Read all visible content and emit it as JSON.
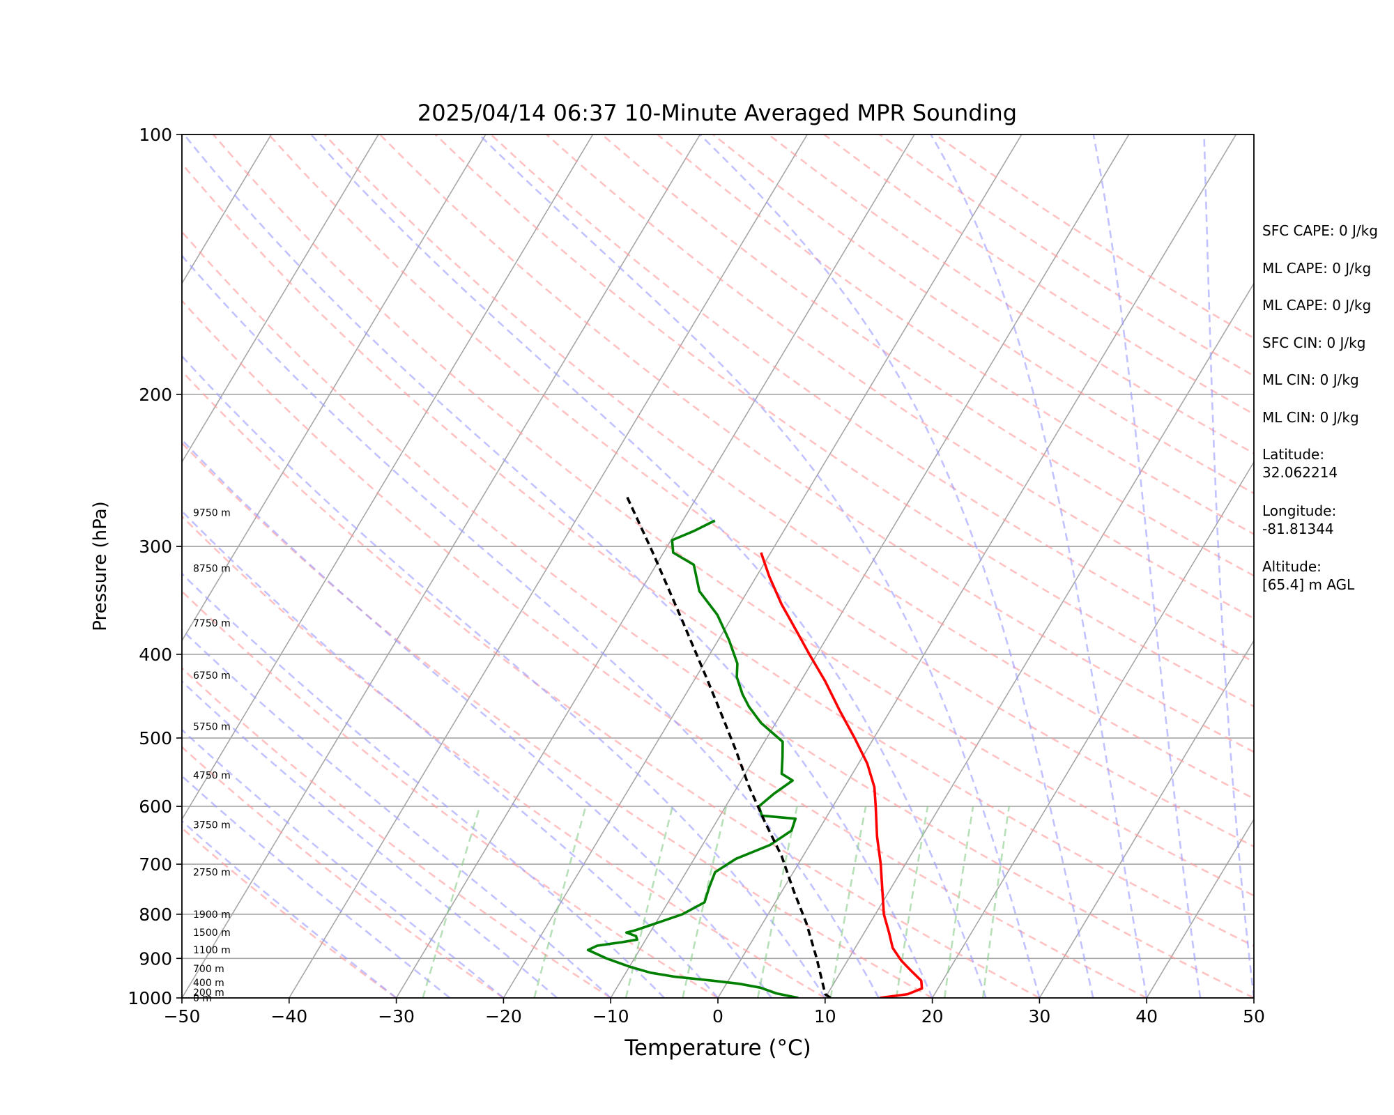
{
  "chart_data": {
    "type": "line",
    "title": "2025/04/14 06:37 10-Minute Averaged MPR Sounding",
    "xlabel": "Temperature (°C)",
    "ylabel": "Pressure (hPa)",
    "xlim": [
      -50,
      50
    ],
    "ylim": [
      1000,
      100
    ],
    "y_scale": "log",
    "skew": "skew-T",
    "grid": true,
    "x_ticks": [
      "−50",
      "−40",
      "−30",
      "−20",
      "−10",
      "0",
      "10",
      "20",
      "30",
      "40",
      "50"
    ],
    "y_ticks": [
      "100",
      "200",
      "300",
      "400",
      "500",
      "600",
      "700",
      "800",
      "900",
      "1000"
    ],
    "height_labels": [
      {
        "p": 1000,
        "label": "0 m"
      },
      {
        "p": 985,
        "label": "200 m"
      },
      {
        "p": 960,
        "label": "400 m"
      },
      {
        "p": 925,
        "label": "700 m"
      },
      {
        "p": 880,
        "label": "1100 m"
      },
      {
        "p": 840,
        "label": "1500 m"
      },
      {
        "p": 800,
        "label": "1900 m"
      },
      {
        "p": 715,
        "label": "2750 m"
      },
      {
        "p": 630,
        "label": "3750 m"
      },
      {
        "p": 552,
        "label": "4750 m"
      },
      {
        "p": 485,
        "label": "5750 m"
      },
      {
        "p": 423,
        "label": "6750 m"
      },
      {
        "p": 368,
        "label": "7750 m"
      },
      {
        "p": 318,
        "label": "8750 m"
      },
      {
        "p": 274,
        "label": "9750 m"
      }
    ],
    "series": [
      {
        "color": "#ff0000",
        "x": [
          15.1,
          17.5,
          18.5,
          18.0,
          16.5,
          15.0,
          13.5,
          12.3,
          10.8,
          9.3,
          7.7,
          5.8,
          4.0,
          2.8,
          0.8,
          -1.8,
          -4.7,
          -7.7,
          -10.7,
          -13.3,
          -16.1,
          -18.8,
          -20.9
        ],
        "y": [
          1000,
          990,
          975,
          955,
          930,
          905,
          875,
          840,
          800,
          750,
          700,
          650,
          600,
          570,
          535,
          500,
          465,
          430,
          400,
          375,
          350,
          325,
          305
        ]
      },
      {
        "color": "#008000",
        "x": [
          7.5,
          5.2,
          3.4,
          1.2,
          -1.5,
          -5.2,
          -7.7,
          -10.0,
          -12.6,
          -14.8,
          -14.2,
          -12.1,
          -10.8,
          -11.1,
          -12.2,
          -11.5,
          -9.5,
          -8.0,
          -6.6,
          -7.0,
          -7.3,
          -6.1,
          -3.7,
          -2.5,
          -2.8,
          -6.1,
          -6.9,
          -6.2,
          -5.2,
          -6.6,
          -7.5,
          -8.3,
          -11.4,
          -13.4,
          -14.7,
          -16.2,
          -16.9,
          -19.0,
          -21.5,
          -24.5,
          -26.5,
          -29.1,
          -29.9,
          -28.4,
          -27.0
        ],
        "y": [
          1000,
          988,
          973,
          963,
          955,
          945,
          935,
          920,
          900,
          880,
          870,
          862,
          856,
          848,
          840,
          835,
          815,
          800,
          775,
          745,
          715,
          690,
          665,
          640,
          620,
          615,
          600,
          580,
          560,
          550,
          525,
          505,
          480,
          460,
          445,
          425,
          410,
          385,
          360,
          338,
          315,
          305,
          295,
          288,
          280
        ]
      },
      {
        "color": "#000000",
        "x": [
          10.5,
          9.8,
          7.0,
          4.1,
          1.0,
          -2.0,
          -5.5,
          -9.0,
          -12.3,
          -15.5,
          -18.8,
          -24.8,
          -31.0,
          -36.5
        ],
        "y": [
          1000,
          990,
          900,
          820,
          750,
          685,
          625,
          568,
          515,
          470,
          428,
          362,
          305,
          263
        ]
      }
    ],
    "annotations": [
      "SFC CAPE: 0 J/kg",
      "ML CAPE: 0 J/kg",
      "ML CAPE: 0 J/kg",
      "SFC CIN: 0 J/kg",
      "ML CIN: 0 J/kg",
      "ML CIN: 0 J/kg",
      "Latitude:\n32.062214",
      "Longitude:\n-81.81344",
      "Altitude:\n[65.4] m AGL"
    ]
  }
}
